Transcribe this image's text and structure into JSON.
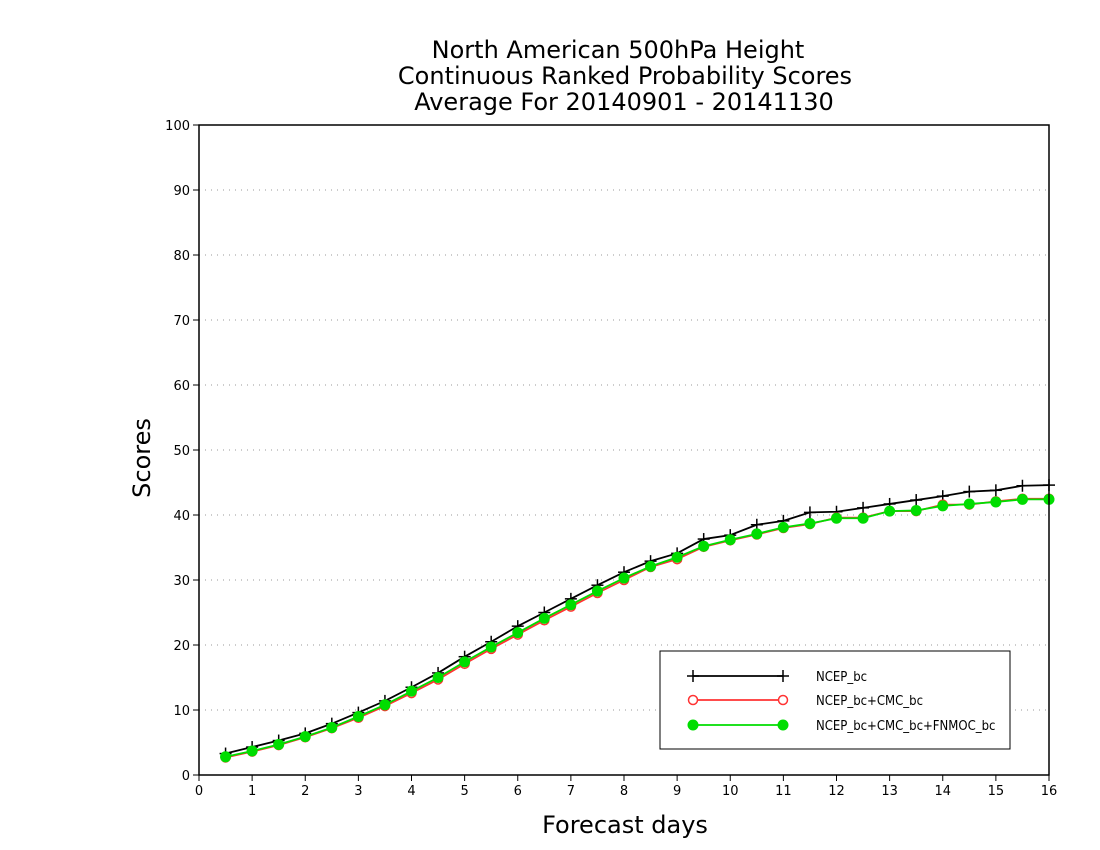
{
  "chart_data": {
    "type": "line",
    "title_lines": [
      "North American 500hPa Height",
      "Continuous Ranked Probability Scores",
      "Average For 20140901 - 20141130"
    ],
    "xlabel": "Forecast days",
    "ylabel": "Scores",
    "xlim": [
      0,
      16
    ],
    "ylim": [
      0,
      100
    ],
    "xticks": [
      0,
      1,
      2,
      3,
      4,
      5,
      6,
      7,
      8,
      9,
      10,
      11,
      12,
      13,
      14,
      15,
      16
    ],
    "yticks": [
      0,
      10,
      20,
      30,
      40,
      50,
      60,
      70,
      80,
      90,
      100
    ],
    "grid": "horizontal-dotted",
    "legend_position": "bottom-right",
    "x": [
      0.5,
      1,
      1.5,
      2,
      2.5,
      3,
      3.5,
      4,
      4.5,
      5,
      5.5,
      6,
      6.5,
      7,
      7.5,
      8,
      8.5,
      9,
      9.5,
      10,
      10.5,
      11,
      11.5,
      12,
      12.5,
      13,
      13.5,
      14,
      14.5,
      15,
      15.5,
      16
    ],
    "series": [
      {
        "name": "NCEP_bc",
        "color": "#000000",
        "marker": "plus",
        "values": [
          3.3,
          4.3,
          5.3,
          6.4,
          7.9,
          9.6,
          11.4,
          13.5,
          15.7,
          18.2,
          20.5,
          22.9,
          25.0,
          27.1,
          29.2,
          31.2,
          32.9,
          34.1,
          36.3,
          36.9,
          38.5,
          39.1,
          40.4,
          40.5,
          41.1,
          41.7,
          42.3,
          42.9,
          43.6,
          43.8,
          44.5,
          44.6
        ]
      },
      {
        "name": "NCEP_bc+CMC_bc",
        "color": "#ff3333",
        "marker": "open-circle",
        "values": [
          2.7,
          3.6,
          4.6,
          5.8,
          7.2,
          8.8,
          10.6,
          12.6,
          14.7,
          17.1,
          19.4,
          21.6,
          23.8,
          25.9,
          28.0,
          30.0,
          32.0,
          33.2,
          35.1,
          36.1,
          37.0,
          38.0,
          38.6,
          39.6,
          39.6,
          40.6,
          40.6,
          41.6,
          41.6,
          42.1,
          42.5,
          42.5
        ]
      },
      {
        "name": "NCEP_bc+CMC_bc+FNMOC_bc",
        "color": "#00dd00",
        "marker": "filled-circle",
        "values": [
          2.8,
          3.7,
          4.7,
          5.9,
          7.3,
          9.0,
          10.8,
          12.9,
          15.0,
          17.4,
          19.7,
          21.9,
          24.1,
          26.2,
          28.3,
          30.3,
          32.1,
          33.5,
          35.2,
          36.2,
          37.1,
          38.1,
          38.7,
          39.5,
          39.5,
          40.6,
          40.7,
          41.4,
          41.7,
          42.0,
          42.4,
          42.4
        ]
      }
    ]
  }
}
